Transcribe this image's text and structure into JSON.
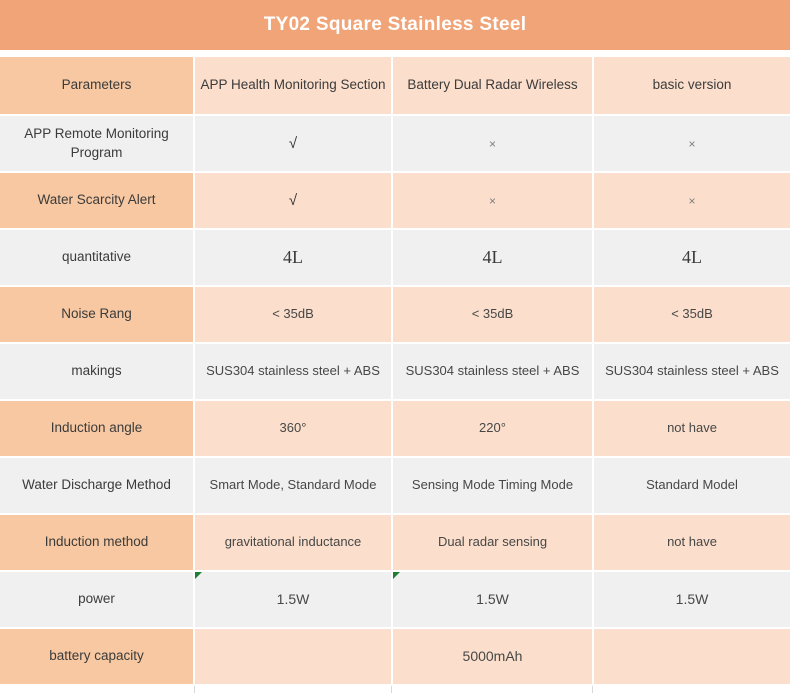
{
  "title": "TY02 Square Stainless Steel",
  "colors": {
    "banner": "#F0A478",
    "label_cell_peach": "#F7C8A1",
    "data_cell_peach": "#FBDFCC",
    "gray_row": "#F0F0F0",
    "corner_flag_green": "#1E7E34",
    "title_text": "#FFFFFF"
  },
  "header": {
    "columns": [
      "Parameters",
      "APP Health Monitoring Section",
      "Battery Dual Radar Wireless",
      "basic version"
    ]
  },
  "rows": [
    {
      "label": "APP Remote Monitoring Program",
      "values": [
        "√",
        "×",
        "×"
      ]
    },
    {
      "label": "Water Scarcity Alert",
      "values": [
        "√",
        "×",
        "×"
      ]
    },
    {
      "label": "quantitative",
      "values": [
        "4L",
        "4L",
        "4L"
      ]
    },
    {
      "label": "Noise Rang",
      "values": [
        "< 35dB",
        "< 35dB",
        "< 35dB"
      ]
    },
    {
      "label": "makings",
      "values": [
        "SUS304 stainless steel + ABS",
        "SUS304 stainless steel + ABS",
        "SUS304 stainless steel + ABS"
      ]
    },
    {
      "label": "Induction angle",
      "values": [
        "360°",
        "220°",
        "not have"
      ]
    },
    {
      "label": "Water Discharge Method",
      "values": [
        "Smart Mode, Standard Mode",
        "Sensing Mode Timing Mode",
        "Standard Model"
      ]
    },
    {
      "label": "Induction method",
      "values": [
        "gravitational inductance",
        "Dual radar sensing",
        "not have"
      ]
    },
    {
      "label": "power",
      "values": [
        "1.5W",
        "1.5W",
        "1.5W"
      ]
    },
    {
      "label": "battery capacity",
      "values": [
        "",
        "5000mAh",
        ""
      ]
    }
  ]
}
